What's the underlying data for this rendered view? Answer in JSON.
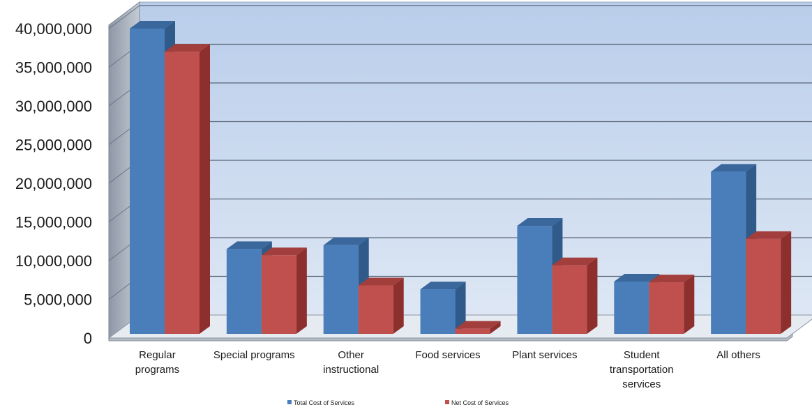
{
  "chart_data": {
    "type": "bar",
    "style": "3d-clustered-column",
    "categories": [
      "Regular programs",
      "Special programs",
      "Other instructional",
      "Food services",
      "Plant services",
      "Student transportation services",
      "All others"
    ],
    "category_lines": [
      [
        "Regular",
        "programs"
      ],
      [
        "Special programs"
      ],
      [
        "Other",
        "instructional"
      ],
      [
        "Food services"
      ],
      [
        "Plant services"
      ],
      [
        "Student",
        "transportation",
        "services"
      ],
      [
        "All others"
      ]
    ],
    "series": [
      {
        "name": "Total Cost of Services",
        "values": [
          40000000,
          11500000,
          12000000,
          6300000,
          14500000,
          7300000,
          21500000
        ]
      },
      {
        "name": "Net Cost of Services",
        "values": [
          37000000,
          10700000,
          6800000,
          1200000,
          9400000,
          7200000,
          12800000
        ]
      }
    ],
    "ylim": [
      0,
      40000000
    ],
    "yticks": [
      0,
      5000000,
      10000000,
      15000000,
      20000000,
      25000000,
      30000000,
      35000000,
      40000000
    ],
    "ytick_labels": [
      "0",
      "5,000,000",
      "10,000,000",
      "15,000,000",
      "20,000,000",
      "25,000,000",
      "30,000,000",
      "35,000,000",
      "40,000,000"
    ],
    "grid": true,
    "legend_position": "bottom",
    "colors": {
      "total": "#4a7ebb",
      "total_side": "#2f5a8a",
      "total_top": "#3a679c",
      "net": "#c0504d",
      "net_side": "#8c2f2d",
      "net_top": "#a23e3b",
      "wall_top": "#b9cdea",
      "wall_bottom": "#dde7f4",
      "gridline": "#5a6677"
    }
  }
}
